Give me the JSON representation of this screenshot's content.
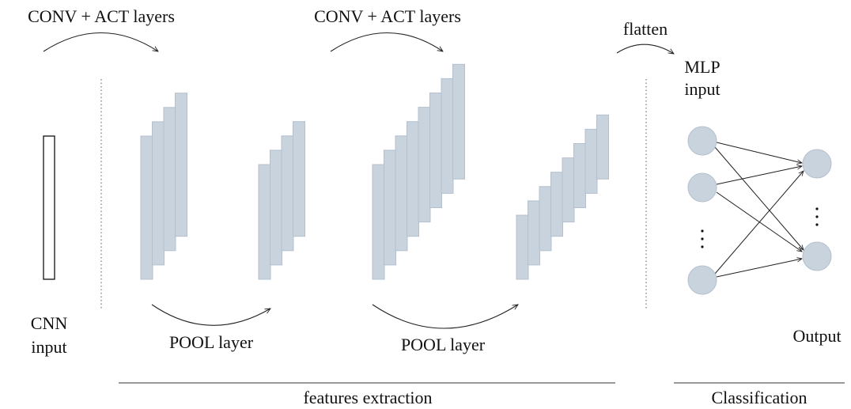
{
  "labels": {
    "conv_act_1": "CONV + ACT layers",
    "conv_act_2": "CONV + ACT layers",
    "flatten": "flatten",
    "mlp_input": [
      "MLP",
      "input"
    ],
    "cnn_input": [
      "CNN",
      "input"
    ],
    "pool_1": "POOL layer",
    "pool_2": "POOL layer",
    "output": "Output",
    "features_extraction": "features extraction",
    "classification": "Classification"
  }
}
